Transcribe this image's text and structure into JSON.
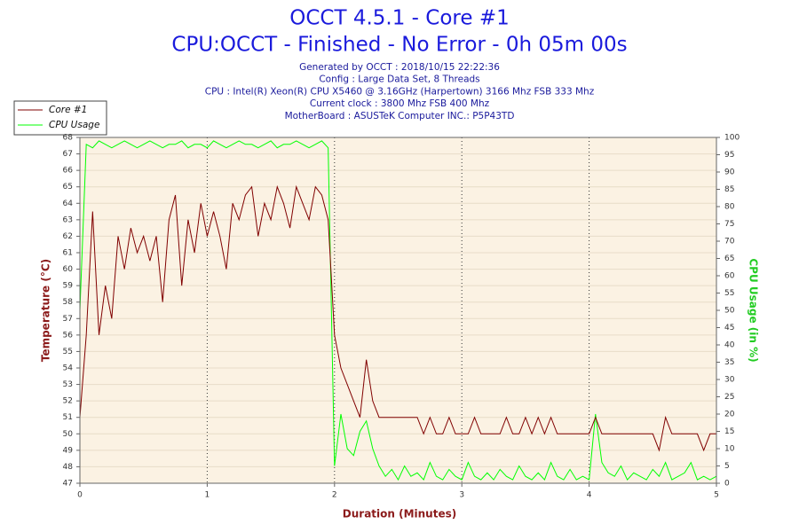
{
  "chart_data": {
    "type": "line",
    "title": "OCCT 4.5.1 - Core #1",
    "subtitle": "CPU:OCCT - Finished - No Error - 0h 05m 00s",
    "info": [
      "Generated by OCCT : 2018/10/15 22:22:36",
      "Config : Large Data Set, 8 Threads",
      "CPU : Intel(R) Xeon(R) CPU X5460 @ 3.16GHz (Harpertown) 3166 Mhz FSB 333 Mhz",
      "Current clock : 3800 Mhz FSB 400 Mhz",
      "MotherBoard : ASUSTeK Computer INC.: P5P43TD"
    ],
    "x_label": "Duration (Minutes)",
    "y_label": "Temperature (°C)",
    "y2_label": "CPU Usage (in %)",
    "xlim": [
      0,
      5
    ],
    "xticks": [
      0,
      1,
      2,
      3,
      4,
      5
    ],
    "ylim": [
      47,
      68
    ],
    "yticks": [
      47,
      48,
      49,
      50,
      51,
      52,
      53,
      54,
      55,
      56,
      57,
      58,
      59,
      60,
      61,
      62,
      63,
      64,
      65,
      66,
      67,
      68
    ],
    "y2lim": [
      0,
      100
    ],
    "y2ticks": [
      0,
      5,
      10,
      15,
      20,
      25,
      30,
      35,
      40,
      45,
      50,
      55,
      60,
      65,
      70,
      75,
      80,
      85,
      90,
      95,
      100
    ],
    "grid": true,
    "legend": "top-left",
    "x": [
      0,
      0.05,
      0.1,
      0.15,
      0.2,
      0.25,
      0.3,
      0.35,
      0.4,
      0.45,
      0.5,
      0.55,
      0.6,
      0.65,
      0.7,
      0.75,
      0.8,
      0.85,
      0.9,
      0.95,
      1,
      1.05,
      1.1,
      1.15,
      1.2,
      1.25,
      1.3,
      1.35,
      1.4,
      1.45,
      1.5,
      1.55,
      1.6,
      1.65,
      1.7,
      1.75,
      1.8,
      1.85,
      1.9,
      1.95,
      2,
      2.05,
      2.1,
      2.15,
      2.2,
      2.25,
      2.3,
      2.35,
      2.4,
      2.45,
      2.5,
      2.55,
      2.6,
      2.65,
      2.7,
      2.75,
      2.8,
      2.85,
      2.9,
      2.95,
      3,
      3.05,
      3.1,
      3.15,
      3.2,
      3.25,
      3.3,
      3.35,
      3.4,
      3.45,
      3.5,
      3.55,
      3.6,
      3.65,
      3.7,
      3.75,
      3.8,
      3.85,
      3.9,
      3.95,
      4,
      4.05,
      4.1,
      4.15,
      4.2,
      4.25,
      4.3,
      4.35,
      4.4,
      4.45,
      4.5,
      4.55,
      4.6,
      4.65,
      4.7,
      4.75,
      4.8,
      4.85,
      4.9,
      4.95,
      5
    ],
    "series": [
      {
        "name": "Core #1",
        "color": "#800000",
        "values": [
          51,
          56,
          63.5,
          56,
          59,
          57,
          62,
          60,
          62.5,
          61,
          62,
          60.5,
          62,
          58,
          63,
          64.5,
          59,
          63,
          61,
          64,
          62,
          63.5,
          62,
          60,
          64,
          63,
          64.5,
          65,
          62,
          64,
          63,
          65,
          64,
          62.5,
          65,
          64,
          63,
          65,
          64.5,
          63,
          56,
          54,
          53,
          52,
          51,
          54.5,
          52,
          51,
          51,
          51,
          51,
          51,
          51,
          51,
          50,
          51,
          50,
          50,
          51,
          50,
          50,
          50,
          51,
          50,
          50,
          50,
          50,
          51,
          50,
          50,
          51,
          50,
          51,
          50,
          51,
          50,
          50,
          50,
          50,
          50,
          50,
          51,
          50,
          50,
          50,
          50,
          50,
          50,
          50,
          50,
          50,
          49,
          51,
          50,
          50,
          50,
          50,
          50,
          49,
          50,
          50
        ]
      },
      {
        "name": "CPU Usage",
        "color": "#00ff00",
        "axis": "y2",
        "values": [
          50,
          98,
          97,
          99,
          98,
          97,
          98,
          99,
          98,
          97,
          98,
          99,
          98,
          97,
          98,
          98,
          99,
          97,
          98,
          98,
          97,
          99,
          98,
          97,
          98,
          99,
          98,
          98,
          97,
          98,
          99,
          97,
          98,
          98,
          99,
          98,
          97,
          98,
          99,
          97,
          5,
          20,
          10,
          8,
          15,
          18,
          10,
          5,
          2,
          4,
          1,
          5,
          2,
          3,
          1,
          6,
          2,
          1,
          4,
          2,
          1,
          6,
          2,
          1,
          3,
          1,
          4,
          2,
          1,
          5,
          2,
          1,
          3,
          1,
          6,
          2,
          1,
          4,
          1,
          2,
          1,
          20,
          6,
          3,
          2,
          5,
          1,
          3,
          2,
          1,
          4,
          2,
          6,
          1,
          2,
          3,
          6,
          1,
          2,
          1,
          2
        ]
      }
    ]
  }
}
